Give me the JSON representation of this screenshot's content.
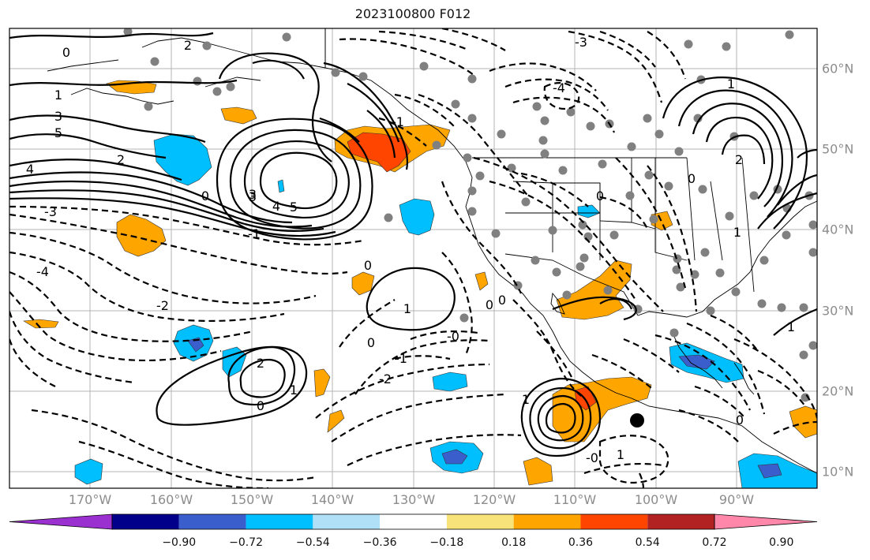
{
  "title": "2023100800 F012",
  "lon_ticks": [
    "170°W",
    "160°W",
    "150°W",
    "140°W",
    "130°W",
    "120°W",
    "110°W",
    "100°W",
    "90°W"
  ],
  "lat_ticks": [
    "60°N",
    "50°N",
    "40°N",
    "30°N",
    "20°N",
    "10°N"
  ],
  "contour_labels": [
    {
      "text": "0"
    },
    {
      "text": "2"
    },
    {
      "text": "1"
    },
    {
      "text": "3"
    },
    {
      "text": "5"
    },
    {
      "text": "4"
    },
    {
      "text": "2"
    },
    {
      "text": "3"
    },
    {
      "text": "-3"
    },
    {
      "text": "-4"
    },
    {
      "text": "-2"
    },
    {
      "text": "0"
    },
    {
      "text": "5"
    },
    {
      "text": "4"
    },
    {
      "text": "3"
    },
    {
      "text": "0"
    },
    {
      "text": "-1"
    },
    {
      "text": "0"
    },
    {
      "text": "1"
    },
    {
      "text": "2"
    },
    {
      "text": "1"
    },
    {
      "text": "0"
    },
    {
      "text": "-0"
    },
    {
      "text": "-1"
    },
    {
      "text": "-2"
    },
    {
      "text": "0"
    },
    {
      "text": "-4"
    },
    {
      "text": "-3"
    },
    {
      "text": "0"
    },
    {
      "text": "0"
    },
    {
      "text": "-1"
    },
    {
      "text": "0"
    },
    {
      "text": "1"
    },
    {
      "text": "2"
    },
    {
      "text": "1"
    },
    {
      "text": "1"
    },
    {
      "text": "-0"
    },
    {
      "text": "1"
    },
    {
      "text": "0"
    },
    {
      "text": "1"
    }
  ],
  "colorbar": {
    "labels": [
      "−0.90",
      "−0.72",
      "−0.54",
      "−0.36",
      "−0.18",
      "0.18",
      "0.36",
      "0.54",
      "0.72",
      "0.90"
    ],
    "colors": [
      "#9b30d0",
      "#00008b",
      "#3a5fcd",
      "#00bfff",
      "#b0e0f8",
      "#ffffff",
      "#f8e37a",
      "#ffa500",
      "#ff4500",
      "#b22222",
      "#ff88aa"
    ]
  },
  "marker": {
    "name": "storm-position"
  }
}
